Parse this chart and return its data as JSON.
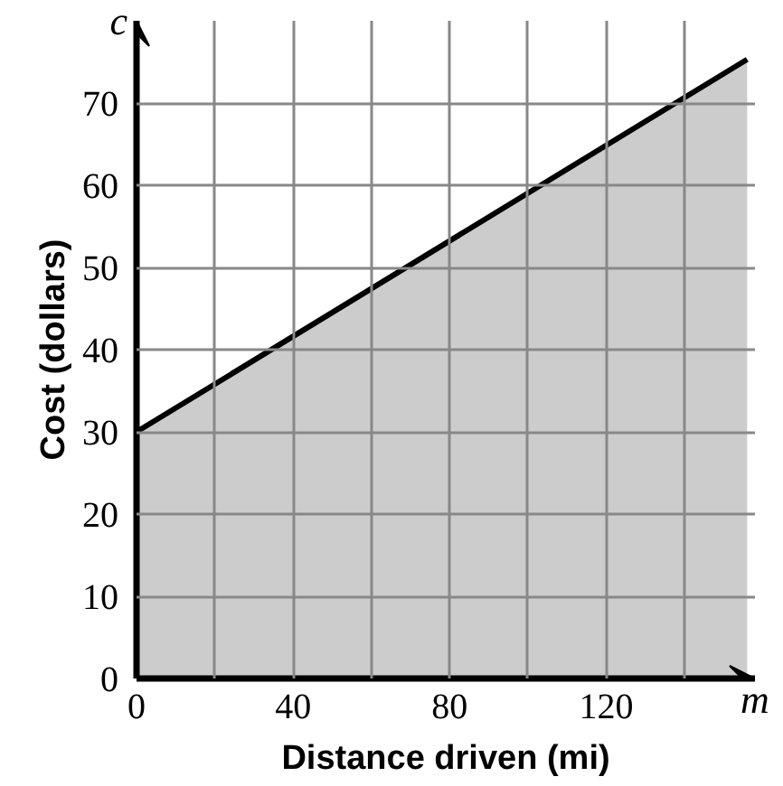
{
  "chart_data": {
    "type": "area",
    "xlabel": "Distance driven (mi)",
    "ylabel": "Cost (dollars)",
    "x": [
      0,
      156
    ],
    "series": [
      {
        "color": "#000000",
        "values": [
          30,
          75.3
        ]
      }
    ],
    "xlim": [
      0,
      158
    ],
    "ylim": [
      0,
      80
    ],
    "xticks": [
      0,
      {
        "value": 20,
        "label": null
      },
      40,
      {
        "value": 60,
        "label": null
      },
      80,
      {
        "value": 100,
        "label": null
      },
      120,
      {
        "value": 140,
        "label": null
      }
    ],
    "yticks": [
      0,
      10,
      20,
      30,
      40,
      50,
      60,
      70
    ],
    "grid": true,
    "annotations": [
      "m",
      "c"
    ]
  }
}
